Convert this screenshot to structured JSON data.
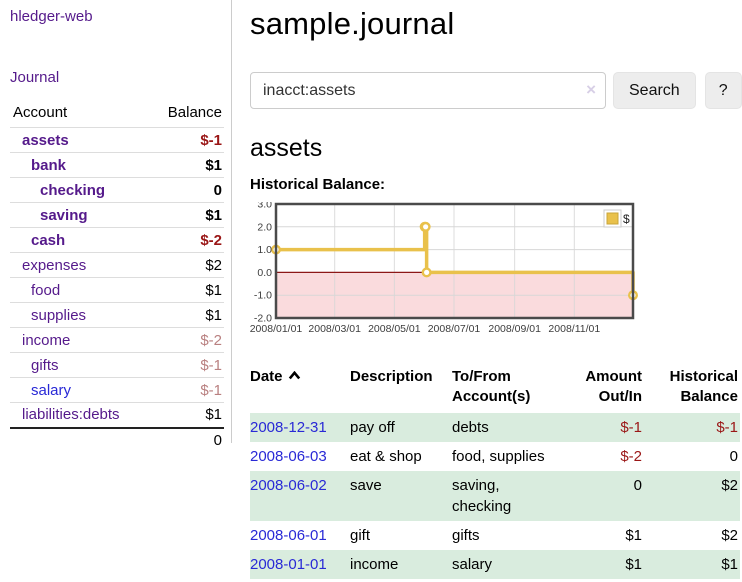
{
  "app": {
    "brand": "hledger-web",
    "nav_journal": "Journal"
  },
  "colors": {
    "accent_purple": "#551a8b",
    "link_blue": "#2929d6",
    "negative_strong": "#9a1616",
    "negative_muted": "#b98080",
    "stripe_green": "#d9ecde",
    "series_yellow": "#e9c14b",
    "negative_region_pink": "#fadbdd",
    "zero_line_red": "#8c1717"
  },
  "sidebar": {
    "headers": [
      "Account",
      "Balance"
    ],
    "rows": [
      {
        "account": "assets",
        "balance": "$-1",
        "depth": 1,
        "bold": true,
        "balance_tone": "negative_strong",
        "link_tone": "purple"
      },
      {
        "account": "bank",
        "balance": "$1",
        "depth": 2,
        "bold": true,
        "balance_tone": "normal",
        "link_tone": "purple"
      },
      {
        "account": "checking",
        "balance": "0",
        "depth": 3,
        "bold": true,
        "balance_tone": "normal",
        "link_tone": "purple"
      },
      {
        "account": "saving",
        "balance": "$1",
        "depth": 3,
        "bold": true,
        "balance_tone": "normal",
        "link_tone": "purple"
      },
      {
        "account": "cash",
        "balance": "$-2",
        "depth": 2,
        "bold": true,
        "balance_tone": "negative_strong",
        "link_tone": "purple"
      },
      {
        "account": "expenses",
        "balance": "$2",
        "depth": 1,
        "bold": false,
        "balance_tone": "normal",
        "link_tone": "purple"
      },
      {
        "account": "food",
        "balance": "$1",
        "depth": 2,
        "bold": false,
        "balance_tone": "normal",
        "link_tone": "purple"
      },
      {
        "account": "supplies",
        "balance": "$1",
        "depth": 2,
        "bold": false,
        "balance_tone": "normal",
        "link_tone": "purple"
      },
      {
        "account": "income",
        "balance": "$-2",
        "depth": 1,
        "bold": false,
        "balance_tone": "negative_muted",
        "link_tone": "purple"
      },
      {
        "account": "gifts",
        "balance": "$-1",
        "depth": 2,
        "bold": false,
        "balance_tone": "negative_muted",
        "link_tone": "purple"
      },
      {
        "account": "salary",
        "balance": "$-1",
        "depth": 2,
        "bold": false,
        "balance_tone": "negative_muted",
        "link_tone": "blue"
      },
      {
        "account": "liabilities:debts",
        "balance": "$1",
        "depth": 1,
        "bold": false,
        "balance_tone": "normal",
        "link_tone": "purple"
      }
    ],
    "total": "0"
  },
  "header": {
    "title": "sample.journal"
  },
  "search": {
    "value": "inacct:assets",
    "clear_icon": "×",
    "button_label": "Search",
    "help_label": "?"
  },
  "main": {
    "account_title": "assets",
    "chart_label": "Historical Balance:"
  },
  "chart_data": {
    "type": "line",
    "step": true,
    "title": "Historical Balance",
    "legend": [
      {
        "label": "$",
        "color": "#e9c14b"
      }
    ],
    "legend_position": "top-right",
    "grid": true,
    "ylim": [
      -2.0,
      3.0
    ],
    "yticks": [
      "3.0",
      "2.0",
      "1.0",
      "0.0",
      "-1.0",
      "-2.0"
    ],
    "ytick_values": [
      3,
      2,
      1,
      0,
      -1,
      -2
    ],
    "x_range_days": 365,
    "xticks": [
      {
        "label": "2008/01/01",
        "day": 0
      },
      {
        "label": "2008/03/01",
        "day": 60
      },
      {
        "label": "2008/05/01",
        "day": 121
      },
      {
        "label": "2008/07/01",
        "day": 182
      },
      {
        "label": "2008/09/01",
        "day": 244
      },
      {
        "label": "2008/11/01",
        "day": 305
      }
    ],
    "series": [
      {
        "name": "$",
        "color": "#e9c14b",
        "points": [
          {
            "date": "2008-01-01",
            "day": 0,
            "value": 1
          },
          {
            "date": "2008-06-01",
            "day": 152,
            "value": 2
          },
          {
            "date": "2008-06-02",
            "day": 153,
            "value": 2
          },
          {
            "date": "2008-06-03",
            "day": 154,
            "value": 0
          },
          {
            "date": "2008-12-31",
            "day": 365,
            "value": -1
          }
        ]
      }
    ],
    "negative_region": {
      "from": 0,
      "to": -2,
      "color": "#fadbdd"
    },
    "zero_line_color": "#8c1717"
  },
  "register": {
    "headers": [
      {
        "label": "Date",
        "sortable": true,
        "align": "left"
      },
      {
        "label": "Description",
        "align": "left"
      },
      {
        "label": "To/From Account(s)",
        "align": "left"
      },
      {
        "label": "Amount Out/In",
        "align": "right"
      },
      {
        "label": "Historical Balance",
        "align": "right"
      }
    ],
    "rows": [
      {
        "date": "2008-12-31",
        "description": "pay off",
        "accounts": "debts",
        "amount": "$-1",
        "amount_tone": "negative",
        "balance": "$-1",
        "balance_tone": "negative"
      },
      {
        "date": "2008-06-03",
        "description": "eat & shop",
        "accounts": "food, supplies",
        "amount": "$-2",
        "amount_tone": "negative",
        "balance": "0",
        "balance_tone": "normal"
      },
      {
        "date": "2008-06-02",
        "description": "save",
        "accounts": "saving, checking",
        "amount": "0",
        "amount_tone": "normal",
        "balance": "$2",
        "balance_tone": "normal"
      },
      {
        "date": "2008-06-01",
        "description": "gift",
        "accounts": "gifts",
        "amount": "$1",
        "amount_tone": "normal",
        "balance": "$2",
        "balance_tone": "normal"
      },
      {
        "date": "2008-01-01",
        "description": "income",
        "accounts": "salary",
        "amount": "$1",
        "amount_tone": "normal",
        "balance": "$1",
        "balance_tone": "normal"
      }
    ]
  }
}
